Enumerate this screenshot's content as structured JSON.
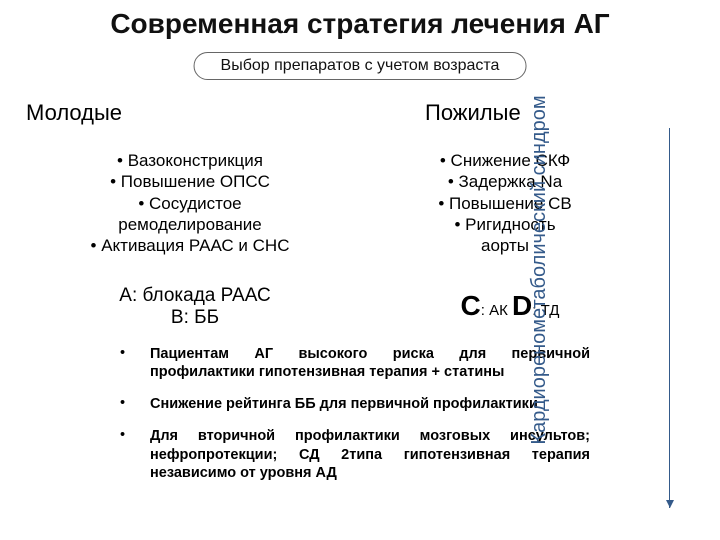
{
  "title": "Современная стратегия лечения АГ",
  "subtitle": "Выбор препаратов с учетом возраста",
  "left": {
    "heading": "Молодые",
    "bullets": [
      "• Вазоконстрикция",
      "• Повышение ОПСС",
      "• Сосудистое",
      "ремоделирование",
      "• Активация РААС и СНС"
    ],
    "ab_line1": "А: блокада РААС",
    "ab_line2": "В: ББ"
  },
  "right": {
    "heading": "Пожилые",
    "bullets": [
      "• Снижение СКФ",
      "• Задержка Na",
      "• Повышение СВ",
      "• Ригидность",
      "аорты"
    ],
    "cd": {
      "c_big": "С",
      "c_tail": ": АК ",
      "d_big": "D",
      "d_tail": ": ТД"
    }
  },
  "notes": [
    "Пациентам АГ высокого риска для первичной профилактики гипотензивная терапия + статины",
    "Снижение рейтинга ББ для первичной профилактики",
    "Для вторичной профилактики мозговых инсультов; нефропротекции; СД 2типа гипотензивная терапия независимо от уровня АД"
  ],
  "vertical_label": "Кардиоренометаболический синдром",
  "colors": {
    "accent": "#345a8a",
    "text": "#000000",
    "bg": "#ffffff"
  }
}
